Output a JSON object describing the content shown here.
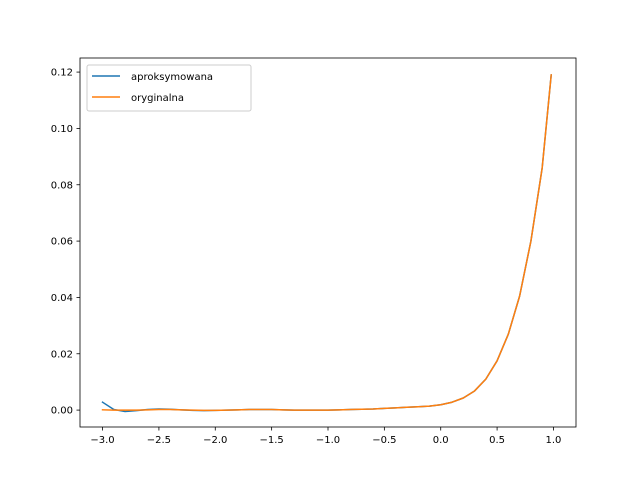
{
  "chart_data": {
    "type": "line",
    "title": "",
    "xlabel": "",
    "ylabel": "",
    "xlim": [
      -3.2,
      1.2
    ],
    "ylim": [
      -0.006,
      0.125
    ],
    "xticks": [
      -3.0,
      -2.5,
      -2.0,
      -1.5,
      -1.0,
      -0.5,
      0.0,
      0.5,
      1.0
    ],
    "xtick_labels": [
      "−3.0",
      "−2.5",
      "−2.0",
      "−1.5",
      "−1.0",
      "−0.5",
      "0.0",
      "0.5",
      "1.0"
    ],
    "yticks": [
      0.0,
      0.02,
      0.04,
      0.06,
      0.08,
      0.1,
      0.12
    ],
    "ytick_labels": [
      "0.00",
      "0.02",
      "0.04",
      "0.06",
      "0.08",
      "0.10",
      "0.12"
    ],
    "grid": false,
    "legend_position": "upper-left",
    "series": [
      {
        "name": "aproksymowana",
        "color": "#1f77b4",
        "x": [
          -3.0,
          -2.9,
          -2.8,
          -2.7,
          -2.6,
          -2.5,
          -2.4,
          -2.3,
          -2.2,
          -2.1,
          -2.0,
          -1.9,
          -1.8,
          -1.7,
          -1.6,
          -1.5,
          -1.4,
          -1.3,
          -1.2,
          -1.1,
          -1.0,
          -0.9,
          -0.8,
          -0.7,
          -0.6,
          -0.5,
          -0.4,
          -0.3,
          -0.2,
          -0.1,
          0.0,
          0.1,
          0.2,
          0.3,
          0.4,
          0.5,
          0.6,
          0.7,
          0.8,
          0.9,
          0.98
        ],
        "y": [
          0.0028,
          0.0002,
          -0.0005,
          -0.0002,
          0.0002,
          0.0004,
          0.0003,
          0.0001,
          -0.0001,
          -0.0002,
          -0.0001,
          0.0,
          0.0001,
          0.0002,
          0.0002,
          0.0002,
          0.0001,
          0.0,
          0.0,
          0.0,
          0.0,
          0.0001,
          0.0002,
          0.0003,
          0.0004,
          0.0006,
          0.0008,
          0.001,
          0.0012,
          0.0014,
          0.0019,
          0.0028,
          0.0043,
          0.0068,
          0.011,
          0.0175,
          0.027,
          0.0405,
          0.06,
          0.086,
          0.119
        ]
      },
      {
        "name": "oryginalna",
        "color": "#ff7f0e",
        "x": [
          -3.0,
          -2.9,
          -2.8,
          -2.7,
          -2.6,
          -2.5,
          -2.4,
          -2.3,
          -2.2,
          -2.1,
          -2.0,
          -1.9,
          -1.8,
          -1.7,
          -1.6,
          -1.5,
          -1.4,
          -1.3,
          -1.2,
          -1.1,
          -1.0,
          -0.9,
          -0.8,
          -0.7,
          -0.6,
          -0.5,
          -0.4,
          -0.3,
          -0.2,
          -0.1,
          0.0,
          0.1,
          0.2,
          0.3,
          0.4,
          0.5,
          0.6,
          0.7,
          0.8,
          0.9,
          0.98
        ],
        "y": [
          0.0001,
          0.0,
          0.0,
          0.0,
          0.0001,
          0.0002,
          0.0002,
          0.0001,
          0.0,
          -0.0001,
          -0.0001,
          0.0,
          0.0001,
          0.0002,
          0.0002,
          0.0002,
          0.0001,
          0.0,
          0.0,
          0.0,
          0.0,
          0.0001,
          0.0002,
          0.0003,
          0.0004,
          0.0006,
          0.0008,
          0.001,
          0.0012,
          0.0014,
          0.0019,
          0.0028,
          0.0043,
          0.0068,
          0.011,
          0.0175,
          0.027,
          0.0405,
          0.06,
          0.086,
          0.119
        ]
      }
    ]
  }
}
